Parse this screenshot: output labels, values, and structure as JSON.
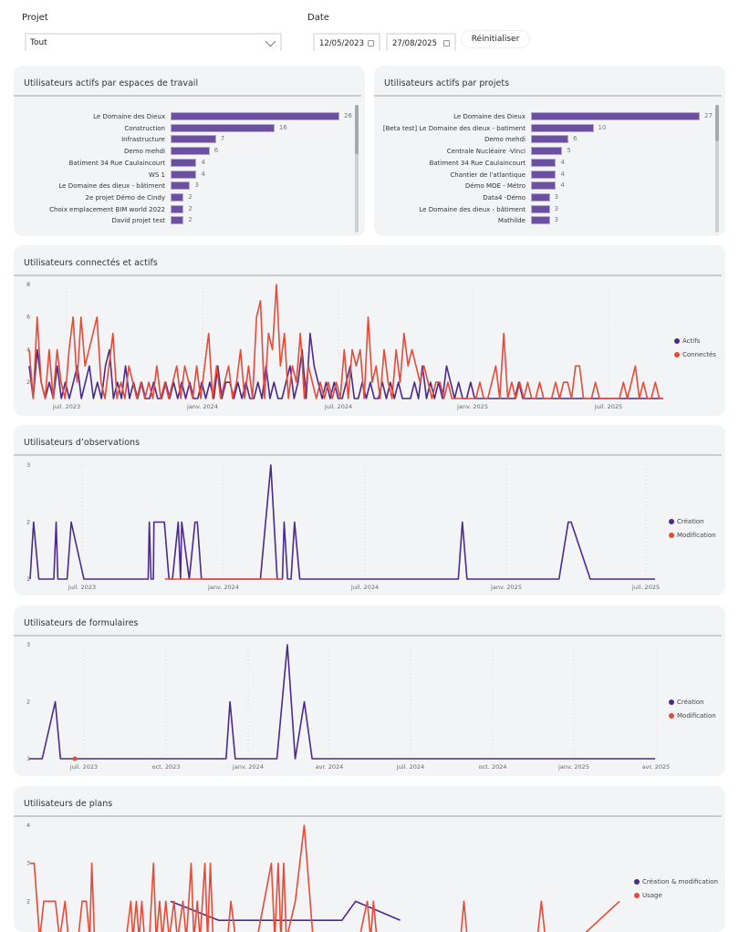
{
  "filters": {
    "project_label": "Projet",
    "project_value": "Tout",
    "date_label": "Date",
    "date_start": "12/05/2023",
    "date_end": "27/08/2025",
    "reset_label": "Réinitialiser"
  },
  "colors": {
    "primary": "#4b2a8c",
    "secondary": "#e84a38",
    "bar": "#6b4fa0"
  },
  "workspaces_chart": {
    "title": "Utilisateurs actifs par espaces de travail",
    "chart_data": {
      "type": "bar",
      "orientation": "horizontal",
      "categories": [
        "Le Domaine des Dieux",
        "Construction",
        "Infrastructure",
        "Demo mehdi",
        "Batiment 34 Rue Caulaincourt",
        "WS 1",
        "Le Domaine des dieux - bâtiment",
        "2e projet Démo de Cindy",
        "Choix emplacement BIM world 2022",
        "David projet test"
      ],
      "values": [
        26,
        16,
        7,
        6,
        4,
        4,
        3,
        2,
        2,
        2
      ],
      "max": 26
    }
  },
  "projects_chart": {
    "title": "Utilisateurs actifs par projets",
    "chart_data": {
      "type": "bar",
      "orientation": "horizontal",
      "categories": [
        "Le Domaine des Dieux",
        "[Beta test] Le Domaine des dieux - batiment",
        "Demo mehdi",
        "Centrale Nucléaire -Vinci",
        "Batiment 34 Rue Caulaincourt",
        "Chantier de l'atlantique",
        "Démo MOE - Métro",
        "Data4 -Démo",
        "Le Domaine des dieux - bâtiment",
        "Mathilde"
      ],
      "values": [
        27,
        10,
        6,
        5,
        4,
        4,
        4,
        3,
        3,
        3
      ],
      "max": 27
    }
  },
  "connected_chart": {
    "title": "Utilisateurs connectés et actifs",
    "chart_data": {
      "type": "line",
      "y_ticks": [
        "2",
        "4",
        "6",
        "8"
      ],
      "ylim": [
        1,
        8
      ],
      "x_ticks": [
        "juil. 2023",
        "janv. 2024",
        "juil. 2024",
        "janv. 2025",
        "juil. 2025"
      ],
      "legend": [
        "Actifs",
        "Connectés"
      ],
      "legend_position": "right",
      "series": [
        {
          "name": "Actifs",
          "values": [
            3,
            1,
            4,
            2,
            1,
            2,
            1,
            3,
            1,
            2,
            1,
            2,
            3,
            1,
            2,
            3,
            1,
            2,
            1,
            3,
            4,
            1,
            2,
            1,
            3,
            1,
            2,
            1,
            2,
            1,
            1,
            2,
            1,
            1,
            2,
            1,
            2,
            1,
            2,
            1,
            2,
            1,
            1,
            2,
            1,
            2,
            1,
            3,
            1,
            2,
            2,
            1,
            2,
            1,
            2,
            1,
            1,
            2,
            1,
            3,
            1,
            2,
            1,
            1,
            2,
            3,
            1,
            2,
            4,
            1,
            5,
            3,
            2,
            1,
            2,
            1,
            2,
            1,
            1,
            2,
            3,
            1,
            1,
            2,
            1,
            2,
            1,
            1,
            2,
            1,
            2,
            1,
            2,
            1,
            1,
            1,
            2,
            1,
            3,
            1,
            2,
            1,
            2,
            1,
            3,
            2,
            1,
            2,
            1,
            1,
            2,
            1,
            1,
            1,
            1,
            1,
            1,
            1,
            1,
            1,
            1,
            1,
            2,
            1,
            1,
            1,
            1,
            1,
            1,
            1,
            1,
            1,
            1,
            1,
            1,
            1,
            1,
            1,
            1,
            1,
            1,
            1,
            1,
            1,
            1,
            1,
            1,
            1,
            1,
            1,
            1,
            1,
            1,
            1,
            1,
            1,
            1,
            1,
            1
          ]
        },
        {
          "name": "Connectés",
          "values": [
            4,
            1,
            6,
            2,
            1,
            4,
            1,
            4,
            2,
            1,
            4,
            6,
            2,
            6,
            3,
            4,
            5,
            6,
            2,
            1,
            3,
            5,
            1,
            2,
            1,
            3,
            2,
            1,
            2,
            1,
            2,
            1,
            3,
            1,
            2,
            1,
            2,
            3,
            1,
            3,
            2,
            1,
            3,
            1,
            3,
            5,
            1,
            3,
            1,
            2,
            3,
            1,
            2,
            4,
            1,
            3,
            1,
            6,
            7,
            1,
            5,
            4,
            8,
            3,
            5,
            1,
            3,
            2,
            5,
            1,
            3,
            2,
            1,
            2,
            1,
            2,
            1,
            2,
            1,
            4,
            1,
            4,
            3,
            4,
            1,
            6,
            2,
            3,
            1,
            4,
            2,
            1,
            4,
            2,
            5,
            3,
            4,
            3,
            2,
            3,
            2,
            1,
            2,
            2,
            1,
            2,
            1,
            1,
            1,
            1,
            1,
            1,
            1,
            2,
            1,
            1,
            2,
            3,
            1,
            5,
            1,
            2,
            1,
            2,
            1,
            2,
            1,
            1,
            2,
            1,
            1,
            1,
            2,
            1,
            2,
            2,
            1,
            3,
            3,
            1,
            1,
            1,
            2,
            1,
            1,
            1,
            1,
            1,
            1,
            2,
            1,
            2,
            3,
            1,
            2,
            1,
            1,
            2,
            1,
            1
          ]
        }
      ]
    }
  },
  "observations_chart": {
    "title": "Utilisateurs d’observations",
    "chart_data": {
      "type": "line",
      "y_ticks": [
        "1",
        "2",
        "3"
      ],
      "ylim": [
        1,
        3
      ],
      "x_ticks": [
        "juil. 2023",
        "janv. 2024",
        "juil. 2024",
        "janv. 2025",
        "juil. 2025"
      ],
      "legend": [
        "Création",
        "Modification"
      ],
      "legend_position": "right",
      "series": [
        {
          "name": "Création",
          "points": [
            [
              0,
              1
            ],
            [
              0.6,
              2
            ],
            [
              1.5,
              1
            ],
            [
              4.1,
              1
            ],
            [
              4.5,
              2
            ],
            [
              4.8,
              1
            ],
            [
              6.4,
              1
            ],
            [
              7.1,
              2
            ],
            [
              9.3,
              1
            ],
            [
              20.4,
              1
            ],
            [
              20.6,
              2
            ],
            [
              20.9,
              1
            ],
            [
              21.3,
              1
            ],
            [
              21.4,
              2
            ],
            [
              23.2,
              2
            ],
            [
              24.0,
              1
            ],
            [
              24.6,
              1
            ],
            [
              25.6,
              2
            ],
            [
              26.0,
              1
            ],
            [
              26.2,
              2
            ],
            [
              27.5,
              1
            ],
            [
              28.5,
              2
            ],
            [
              28.9,
              2
            ],
            [
              29.6,
              1
            ],
            [
              39.8,
              1
            ],
            [
              41.6,
              3
            ],
            [
              42.7,
              1
            ],
            [
              43.6,
              1
            ],
            [
              43.9,
              2
            ],
            [
              44.5,
              1
            ],
            [
              45.1,
              1
            ],
            [
              45.7,
              2
            ],
            [
              46.6,
              1
            ],
            [
              74.0,
              1
            ],
            [
              74.7,
              2
            ],
            [
              75.5,
              1
            ],
            [
              91.4,
              1
            ],
            [
              93.0,
              2
            ],
            [
              93.5,
              2
            ],
            [
              96.8,
              1
            ],
            [
              108,
              1
            ]
          ]
        },
        {
          "name": "Modification",
          "points": [
            [
              23.3,
              1
            ],
            [
              43.7,
              1
            ]
          ]
        }
      ],
      "x_units": "weeks from start"
    }
  },
  "forms_chart": {
    "title": "Utilisateurs de formulaires",
    "chart_data": {
      "type": "line",
      "y_ticks": [
        "1",
        "2",
        "3"
      ],
      "ylim": [
        1,
        3
      ],
      "x_ticks": [
        "juil. 2023",
        "oct. 2023",
        "janv. 2024",
        "avr. 2024",
        "juil. 2024",
        "oct. 2024",
        "janv. 2025",
        "avr. 2025"
      ],
      "legend": [
        "Création",
        "Modification"
      ],
      "legend_position": "right",
      "series": [
        {
          "name": "Création",
          "points": [
            [
              0,
              1
            ],
            [
              2,
              1
            ],
            [
              4,
              2
            ],
            [
              4.8,
              1
            ],
            [
              30.2,
              1
            ],
            [
              30.8,
              2
            ],
            [
              31.6,
              1
            ],
            [
              38,
              1
            ],
            [
              39.6,
              3
            ],
            [
              40.8,
              1
            ],
            [
              42.2,
              2
            ],
            [
              43.4,
              1
            ],
            [
              96,
              1
            ]
          ]
        },
        {
          "name": "Modification",
          "points": [
            [
              7,
              1
            ]
          ]
        }
      ],
      "x_units": "weeks from start"
    }
  },
  "plans_chart": {
    "title": "Utilisateurs de plans",
    "chart_data": {
      "type": "line",
      "y_ticks": [
        "2",
        "3",
        "4"
      ],
      "ylim": [
        1,
        4
      ],
      "x_ticks": [],
      "legend": [
        "Création & modification",
        "Usage"
      ],
      "legend_position": "right",
      "series": [
        {
          "name": "Création & modification",
          "points": [
            [
              20.5,
              2
            ],
            [
              27.5,
              1.5
            ],
            [
              45.5,
              1.5
            ],
            [
              47.5,
              2
            ],
            [
              54,
              1.5
            ]
          ]
        },
        {
          "name": "Usage",
          "points": [
            [
              0,
              3
            ],
            [
              0.6,
              3
            ],
            [
              1.4,
              1
            ],
            [
              2,
              2
            ],
            [
              3.7,
              2
            ],
            [
              4.3,
              1
            ],
            [
              5.1,
              2
            ],
            [
              5.6,
              1
            ],
            [
              7,
              1
            ],
            [
              7.6,
              2
            ],
            [
              8.2,
              2
            ],
            [
              8.7,
              1
            ],
            [
              9,
              3
            ],
            [
              9.4,
              1
            ],
            [
              14,
              1
            ],
            [
              14.7,
              2
            ],
            [
              15,
              1
            ],
            [
              15.5,
              2
            ],
            [
              15.9,
              1
            ],
            [
              16.3,
              2
            ],
            [
              16.7,
              1
            ],
            [
              17.4,
              1
            ],
            [
              18,
              3
            ],
            [
              18.4,
              1
            ],
            [
              18.9,
              2
            ],
            [
              19.3,
              1
            ],
            [
              19.8,
              2
            ],
            [
              20.3,
              1
            ],
            [
              21,
              2
            ],
            [
              21.5,
              1
            ],
            [
              22.3,
              2
            ],
            [
              22.8,
              1
            ],
            [
              23.5,
              3
            ],
            [
              23.9,
              1
            ],
            [
              24.4,
              2
            ],
            [
              24.8,
              1
            ],
            [
              25.5,
              3
            ],
            [
              25.9,
              1
            ],
            [
              26.3,
              3
            ],
            [
              26.7,
              1
            ],
            [
              28.8,
              1
            ],
            [
              29.3,
              2
            ],
            [
              30,
              1
            ],
            [
              33.1,
              1
            ],
            [
              35.2,
              3
            ],
            [
              35.7,
              1
            ],
            [
              36.2,
              3
            ],
            [
              36.6,
              1
            ],
            [
              37,
              3
            ],
            [
              37.4,
              1
            ],
            [
              38.7,
              2
            ],
            [
              40,
              4
            ],
            [
              41.3,
              1
            ],
            [
              48,
              1
            ],
            [
              49.2,
              2
            ],
            [
              49.7,
              1
            ],
            [
              50.1,
              2
            ],
            [
              50.6,
              1
            ],
            [
              62.8,
              1
            ],
            [
              63.3,
              2
            ],
            [
              63.8,
              1
            ],
            [
              74,
              1
            ],
            [
              74.6,
              2
            ],
            [
              75.2,
              1
            ],
            [
              80,
              1
            ],
            [
              86,
              2
            ]
          ]
        }
      ],
      "x_units": "weeks from start"
    }
  }
}
